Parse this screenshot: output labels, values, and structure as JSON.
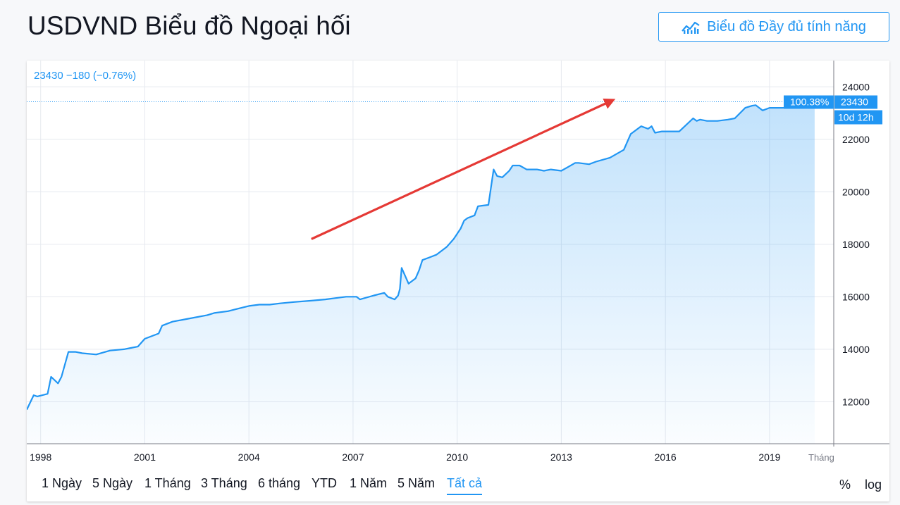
{
  "header": {
    "title": "USDVND Biểu đồ Ngoại hối",
    "full_chart_button": "Biểu đồ Đầy đủ tính năng",
    "full_chart_icon": "chart-line-icon"
  },
  "legend": {
    "value": "23430",
    "change": "−180",
    "change_pct": "(−0.76%)"
  },
  "chart_data": {
    "type": "area",
    "x_unit": "year",
    "series": [
      {
        "x": [
          1997.6,
          1997.8,
          1997.9,
          1998.2,
          1998.3,
          1998.5,
          1998.6,
          1998.8,
          1999.0,
          1999.2,
          1999.6,
          2000.0,
          2000.4,
          2000.6,
          2000.8,
          2001.0,
          2001.4,
          2001.5,
          2001.8,
          2002.2,
          2002.8,
          2003.0,
          2003.4,
          2003.7,
          2004.0,
          2004.3,
          2004.6,
          2004.9,
          2005.3,
          2005.8,
          2006.2,
          2006.5,
          2006.8,
          2007.1,
          2007.2,
          2007.6,
          2007.9,
          2008.0,
          2008.2,
          2008.3,
          2008.35,
          2008.4,
          2008.6,
          2008.8,
          2008.9,
          2009.0,
          2009.2,
          2009.4,
          2009.6,
          2009.7,
          2009.9,
          2010.0,
          2010.1,
          2010.2,
          2010.3,
          2010.5,
          2010.6,
          2010.9,
          2011.05,
          2011.15,
          2011.3,
          2011.5,
          2011.6,
          2011.8,
          2012.0,
          2012.3,
          2012.5,
          2012.7,
          2013.0,
          2013.2,
          2013.4,
          2013.5,
          2013.8,
          2014.0,
          2014.4,
          2014.8,
          2015.0,
          2015.3,
          2015.5,
          2015.6,
          2015.7,
          2015.9,
          2016.0,
          2016.2,
          2016.4,
          2016.8,
          2016.9,
          2017.0,
          2017.2,
          2017.5,
          2017.8,
          2018.0,
          2018.3,
          2018.5,
          2018.6,
          2018.8,
          2019.0,
          2019.4,
          2019.6,
          2019.8,
          2020.0,
          2020.3
        ],
        "y": [
          11700,
          12250,
          12200,
          12300,
          12950,
          12700,
          12950,
          13900,
          13900,
          13850,
          13800,
          13950,
          14000,
          14050,
          14100,
          14400,
          14600,
          14900,
          15050,
          15150,
          15300,
          15380,
          15450,
          15550,
          15650,
          15700,
          15700,
          15750,
          15800,
          15850,
          15900,
          15950,
          16000,
          16000,
          15900,
          16050,
          16150,
          16000,
          15900,
          16050,
          16300,
          17100,
          16500,
          16700,
          17000,
          17400,
          17500,
          17600,
          17800,
          17900,
          18200,
          18400,
          18600,
          18900,
          19000,
          19100,
          19450,
          19500,
          20850,
          20600,
          20550,
          20800,
          21000,
          21000,
          20850,
          20850,
          20800,
          20850,
          20800,
          20950,
          21100,
          21100,
          21050,
          21150,
          21300,
          21600,
          22200,
          22500,
          22400,
          22500,
          22250,
          22300,
          22300,
          22300,
          22300,
          22800,
          22700,
          22750,
          22700,
          22700,
          22750,
          22800,
          23200,
          23280,
          23300,
          23100,
          23200,
          23200,
          23300,
          23250,
          23200,
          23430
        ]
      }
    ],
    "xlim": [
      1997.6,
      2020.85
    ],
    "ylim": [
      10400,
      25000
    ],
    "x_ticks": [
      1998,
      2001,
      2004,
      2007,
      2010,
      2013,
      2016,
      2019
    ],
    "x_tick_labels": [
      "1998",
      "2001",
      "2004",
      "2007",
      "2010",
      "2013",
      "2016",
      "2019"
    ],
    "x_axis_unit_label": "Tháng",
    "y_ticks": [
      12000,
      14000,
      16000,
      18000,
      20000,
      22000,
      24000
    ],
    "y_tick_labels": [
      "12000",
      "14000",
      "16000",
      "18000",
      "20000",
      "22000",
      "24000"
    ],
    "last_value": 23430,
    "last_value_label": "23430",
    "last_pct_label": "100.38%",
    "countdown_label": "10d 12h",
    "annotation": {
      "type": "arrow",
      "color": "#e53935",
      "from": [
        2005.8,
        18200
      ],
      "to": [
        2014.5,
        23500
      ]
    },
    "line_color": "#2196f3",
    "grid": true
  },
  "ranges": [
    "1 Ngày",
    "5 Ngày",
    "1 Tháng",
    "3 Tháng",
    "6 tháng",
    "YTD",
    "1 Năm",
    "5 Năm",
    "Tất cả"
  ],
  "active_range": "Tất cả",
  "options": {
    "percent": "%",
    "log": "log"
  }
}
